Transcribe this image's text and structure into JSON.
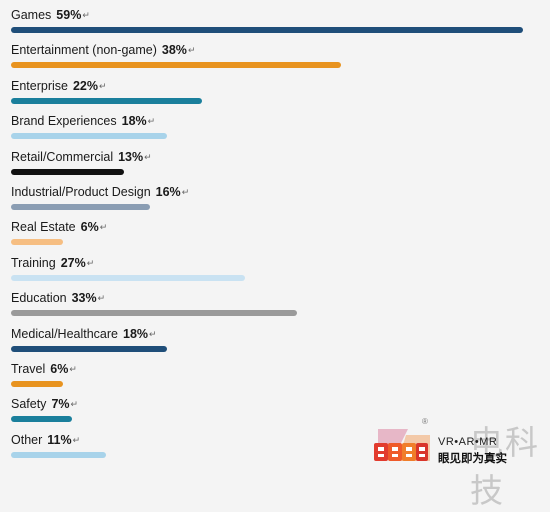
{
  "chart_data": {
    "type": "bar",
    "orientation": "horizontal",
    "title": "",
    "xlim": [
      0,
      59
    ],
    "grid": false,
    "categories": [
      "Games",
      "Entertainment (non-game)",
      "Enterprise",
      "Brand Experiences",
      "Retail/Commercial",
      "Industrial/Product Design",
      "Real Estate",
      "Training",
      "Education",
      "Medical/Healthcare",
      "Travel",
      "Safety",
      "Other"
    ],
    "values": [
      59,
      38,
      22,
      18,
      13,
      16,
      6,
      27,
      33,
      18,
      6,
      7,
      11
    ],
    "value_labels": [
      "59%",
      "38%",
      "22%",
      "18%",
      "13%",
      "16%",
      "6%",
      "27%",
      "33%",
      "18%",
      "6%",
      "7%",
      "11%"
    ],
    "colors": [
      "#1f4e79",
      "#e8931f",
      "#1a7f9c",
      "#a8d3ea",
      "#111111",
      "#8a9db3",
      "#f6be82",
      "#c9e2f2",
      "#9a9a9a",
      "#1f4e79",
      "#e8931f",
      "#1a7f9c",
      "#a8d3ea"
    ],
    "paragraph_mark": "↵"
  },
  "watermark": {
    "brand": "VR•AR•MR",
    "slogan": "眼见即为真实",
    "big_text": "电科技",
    "registered": "®"
  }
}
